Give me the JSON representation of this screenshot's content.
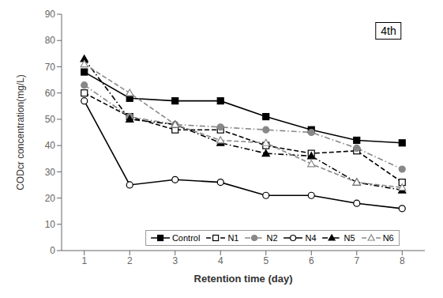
{
  "chart_data": {
    "type": "line",
    "xlabel": "Retention time (day)",
    "ylabel": "CODcr concentration(mg/L)",
    "annotation": "4th",
    "x": [
      1,
      2,
      3,
      4,
      5,
      6,
      7,
      8
    ],
    "xlim": [
      0.5,
      8.5
    ],
    "xticks": [
      1,
      2,
      3,
      4,
      5,
      6,
      7,
      8
    ],
    "ylim": [
      0,
      90
    ],
    "yticks": [
      0,
      10,
      20,
      30,
      40,
      50,
      60,
      70,
      80,
      90
    ],
    "grid": false,
    "legend": "lower center",
    "series": [
      {
        "name": "Control",
        "color": "#000000",
        "marker": "square",
        "line_style": "solid",
        "values": [
          68,
          58,
          57,
          57,
          51,
          46,
          42,
          41
        ]
      },
      {
        "name": "N1",
        "color": "#000000",
        "marker": "open-square",
        "line_style": "dashed",
        "values": [
          60,
          51,
          46,
          46,
          40,
          37,
          38,
          26
        ]
      },
      {
        "name": "N2",
        "color": "#888888",
        "marker": "circle",
        "line_style": "dashdot",
        "values": [
          63,
          51,
          48,
          47,
          46,
          45,
          39,
          31
        ]
      },
      {
        "name": "N4",
        "color": "#000000",
        "marker": "open-circle",
        "line_style": "solid",
        "values": [
          57,
          25,
          27,
          26,
          21,
          21,
          18,
          16
        ]
      },
      {
        "name": "N5",
        "color": "#000000",
        "marker": "triangle",
        "line_style": "dashdot",
        "values": [
          73,
          50,
          48,
          41,
          37,
          36,
          26,
          23
        ]
      },
      {
        "name": "N6",
        "color": "#888888",
        "marker": "open-triangle",
        "line_style": "dashed",
        "values": [
          71,
          60,
          48,
          42,
          41,
          33,
          26,
          24
        ]
      }
    ]
  }
}
